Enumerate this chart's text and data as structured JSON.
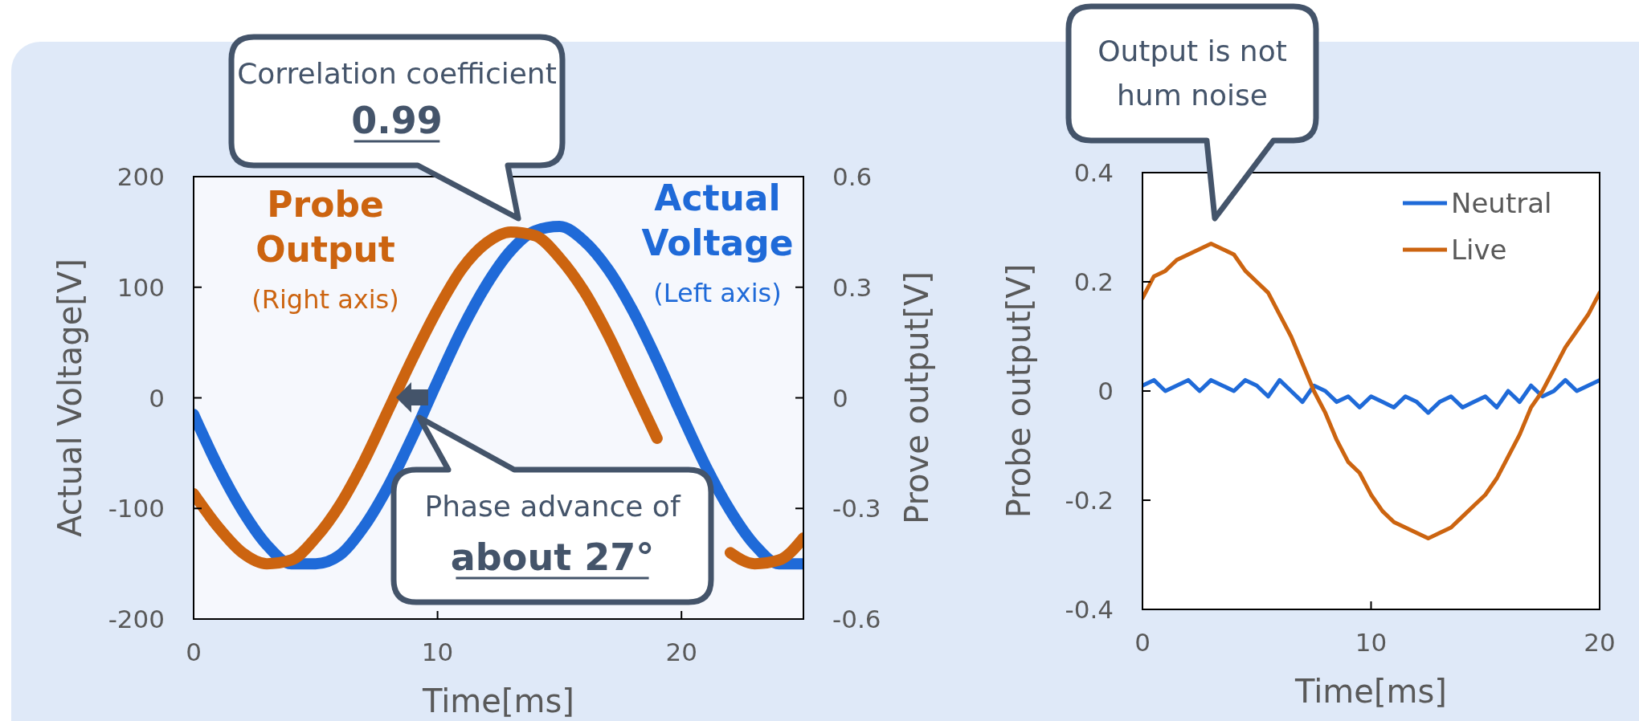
{
  "chart_data": [
    {
      "type": "line",
      "xlabel": "Time[ms]",
      "ylabel": "Actual Voltage[V]",
      "y2label": "Prove output[V]",
      "xlim": [
        0,
        25
      ],
      "xticks": [
        0,
        10,
        20
      ],
      "ylim": [
        -200,
        200
      ],
      "yticks": [
        -200,
        -100,
        0,
        100,
        200
      ],
      "y2lim": [
        -0.6,
        0.6
      ],
      "y2ticks": [
        -0.6,
        -0.3,
        0,
        0.3,
        0.6
      ],
      "grid": false,
      "legend": false,
      "line_style": "solid",
      "x": [
        0,
        1,
        2,
        3,
        4,
        5,
        6,
        7,
        8,
        9,
        10,
        11,
        12,
        13,
        14,
        15,
        16,
        17,
        18,
        19,
        20,
        21,
        22,
        23,
        24,
        25
      ],
      "series": [
        {
          "name": "Actual Voltage",
          "color": "#1f6ad8",
          "values": [
            -15,
            -62,
            -102,
            -133,
            -150,
            -150,
            -142,
            -116,
            -79,
            -34,
            15,
            62,
            102,
            133,
            151,
            155,
            142,
            116,
            79,
            34,
            -15,
            -62,
            -102,
            -133,
            -150,
            -150
          ]
        },
        {
          "name": "Probe Output",
          "color": "#cc6410",
          "axis": "y2",
          "values": [
            -0.26,
            -0.35,
            -0.42,
            -0.45,
            -0.44,
            -0.38,
            -0.29,
            -0.17,
            -0.03,
            0.11,
            0.24,
            0.35,
            0.42,
            0.45,
            0.44,
            0.38,
            0.29,
            0.17,
            0.03,
            -0.11,
            null,
            null,
            -0.42,
            -0.45,
            -0.44,
            -0.38
          ]
        }
      ],
      "annotations": [
        "(Right axis)",
        "(Left axis)",
        "Correlation coefficient\n0.99",
        "Phase advance of\nabout 27°"
      ]
    },
    {
      "type": "line",
      "xlabel": "Time[ms]",
      "ylabel": "Probe output[V]",
      "xlim": [
        0,
        20
      ],
      "xticks": [
        0,
        10,
        20
      ],
      "ylim": [
        -0.4,
        0.4
      ],
      "yticks": [
        -0.4,
        -0.2,
        0,
        0.2,
        0.4
      ],
      "grid": false,
      "legend": "top right",
      "line_style": "solid",
      "x": [
        0,
        0.5,
        1,
        1.5,
        2,
        2.5,
        3,
        3.5,
        4,
        4.5,
        5,
        5.5,
        6,
        6.5,
        7,
        7.5,
        8,
        8.5,
        9,
        9.5,
        10,
        10.5,
        11,
        11.5,
        12,
        12.5,
        13,
        13.5,
        14,
        14.5,
        15,
        15.5,
        16,
        16.5,
        17,
        17.5,
        18,
        18.5,
        19,
        19.5,
        20
      ],
      "series": [
        {
          "name": "Neutral",
          "color": "#1f6ad8",
          "values": [
            0.01,
            0.02,
            0,
            0.01,
            0.02,
            0,
            0.02,
            0.01,
            0,
            0.02,
            0.01,
            -0.01,
            0.02,
            0,
            -0.02,
            0.01,
            0,
            -0.02,
            -0.01,
            -0.03,
            -0.01,
            -0.02,
            -0.03,
            -0.01,
            -0.02,
            -0.04,
            -0.02,
            -0.01,
            -0.03,
            -0.02,
            -0.01,
            -0.03,
            0,
            -0.02,
            0.01,
            -0.01,
            0,
            0.02,
            0,
            0.01,
            0.02
          ]
        },
        {
          "name": "Live",
          "color": "#cc6410",
          "values": [
            0.17,
            0.21,
            0.22,
            0.24,
            0.25,
            0.26,
            0.27,
            0.26,
            0.25,
            0.22,
            0.2,
            0.18,
            0.14,
            0.1,
            0.05,
            0,
            -0.04,
            -0.09,
            -0.13,
            -0.15,
            -0.19,
            -0.22,
            -0.24,
            -0.25,
            -0.26,
            -0.27,
            -0.26,
            -0.25,
            -0.23,
            -0.21,
            -0.19,
            -0.16,
            -0.12,
            -0.08,
            -0.03,
            0,
            0.04,
            0.08,
            0.11,
            0.14,
            0.18
          ]
        }
      ],
      "annotations": [
        "Output is not\nhum noise"
      ]
    }
  ]
}
